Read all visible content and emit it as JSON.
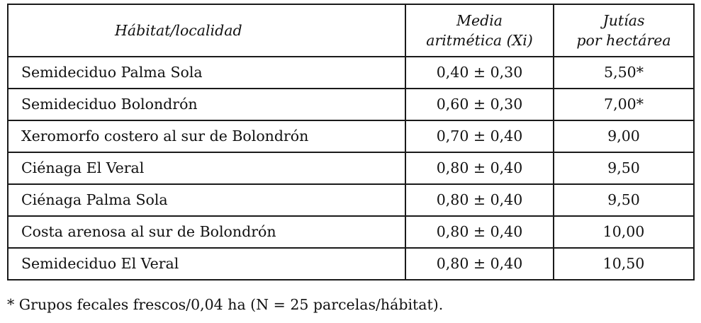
{
  "table": {
    "headers": {
      "habitat": "Hábitat/localidad",
      "media_line1": "Media",
      "media_line2": "aritmética (Xi)",
      "jutias_line1": "Jutías",
      "jutias_line2": "por hectárea"
    },
    "rows": [
      {
        "habitat": "Semideciduo Palma Sola",
        "media": "0,40 ± 0,30",
        "jutias": "5,50*"
      },
      {
        "habitat": "Semideciduo Bolondrón",
        "media": "0,60 ± 0,30",
        "jutias": "7,00*"
      },
      {
        "habitat": "Xeromorfo costero al sur de Bolondrón",
        "media": "0,70 ± 0,40",
        "jutias": "9,00"
      },
      {
        "habitat": "Ciénaga El Veral",
        "media": "0,80 ± 0,40",
        "jutias": "9,50"
      },
      {
        "habitat": "Ciénaga Palma Sola",
        "media": "0,80 ± 0,40",
        "jutias": "9,50"
      },
      {
        "habitat": "Costa arenosa al sur de Bolondrón",
        "media": "0,80 ± 0,40",
        "jutias": "10,00"
      },
      {
        "habitat": "Semideciduo El Veral",
        "media": "0,80 ± 0,40",
        "jutias": "10,50"
      }
    ]
  },
  "footnote": "* Grupos fecales frescos/0,04 ha (N = 25 parcelas/hábitat)."
}
